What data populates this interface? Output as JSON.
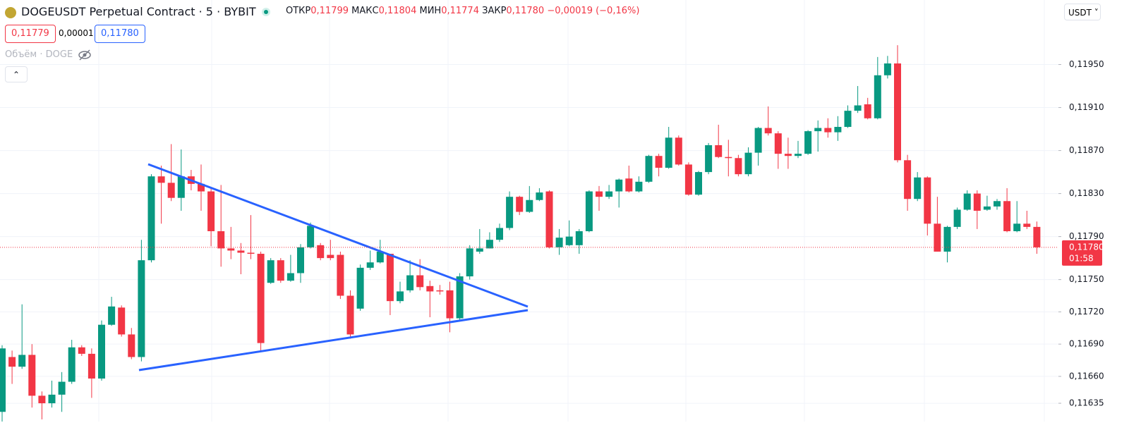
{
  "header": {
    "symbol_title": "DOGEUSDT Perpetual Contract · 5 · BYBIT",
    "ohlc": [
      {
        "label": "ОТКР",
        "value": "0,11799"
      },
      {
        "label": "МАКС",
        "value": "0,11804"
      },
      {
        "label": "МИН",
        "value": "0,11774"
      },
      {
        "label": "ЗАКР",
        "value": "0,11780"
      }
    ],
    "change": "−0,00019 (−0,16%)",
    "bid": "0,11779",
    "spread": "0,00001",
    "ask": "0,11780",
    "volume_label": "Объём · DOGE",
    "currency": "USDT"
  },
  "chart_data": {
    "type": "candlestick",
    "up_color": "#089981",
    "down_color": "#f23645",
    "open": [
      0.11627,
      0.11678,
      0.11669,
      0.1168,
      0.11642,
      0.11635,
      0.11643,
      0.11655,
      0.11687,
      0.11681,
      0.11658,
      0.11708,
      0.11724,
      0.11699,
      0.11678,
      0.11768,
      0.11846,
      0.1184,
      0.11826,
      0.11846,
      0.11839,
      0.11832,
      0.11795,
      0.11779,
      0.11777,
      0.11775,
      0.11774,
      0.11747,
      0.11768,
      0.11749,
      0.11756,
      0.1178,
      0.11782,
      0.11773,
      0.11773,
      0.11735,
      0.11723,
      0.11761,
      0.11766,
      0.11774,
      0.1173,
      0.1174,
      0.11754,
      0.11744,
      0.1174,
      0.1174,
      0.11714,
      0.11753,
      0.11776,
      0.11779,
      0.11787,
      0.11798,
      0.11827,
      0.11813,
      0.11824,
      0.11832,
      0.1178,
      0.11782,
      0.11782,
      0.11795,
      0.11832,
      0.11827,
      0.11832,
      0.11844,
      0.11832,
      0.11841,
      0.11865,
      0.11854,
      0.11882,
      0.11857,
      0.11829,
      0.1185,
      0.11875,
      0.11864,
      0.11863,
      0.11848,
      0.11868,
      0.11891,
      0.11886,
      0.11867,
      0.11865,
      0.11867,
      0.11888,
      0.11891,
      0.11887,
      0.11892,
      0.11907,
      0.11913,
      0.119,
      0.1194,
      0.11951,
      0.11861,
      0.11825,
      0.11845,
      0.11802,
      0.11776,
      0.11799,
      0.11815,
      0.1183,
      0.11815,
      0.11818,
      0.11823,
      0.11795,
      0.11802,
      0.11799
    ],
    "high": [
      0.11689,
      0.11684,
      0.11727,
      0.1169,
      0.11646,
      0.11656,
      0.11664,
      0.11694,
      0.11689,
      0.11686,
      0.11712,
      0.11734,
      0.11726,
      0.11705,
      0.11787,
      0.11848,
      0.11856,
      0.11876,
      0.11871,
      0.11852,
      0.11857,
      0.11835,
      0.11838,
      0.11799,
      0.11784,
      0.1181,
      0.11776,
      0.1177,
      0.1177,
      0.11773,
      0.11783,
      0.11803,
      0.11784,
      0.11787,
      0.11776,
      0.1174,
      0.11764,
      0.11777,
      0.11787,
      0.11774,
      0.11748,
      0.11768,
      0.11769,
      0.11749,
      0.11745,
      0.11748,
      0.11756,
      0.11782,
      0.11797,
      0.11794,
      0.11802,
      0.11832,
      0.11828,
      0.11837,
      0.11835,
      0.11833,
      0.11797,
      0.11805,
      0.11797,
      0.11833,
      0.11837,
      0.11838,
      0.11844,
      0.11856,
      0.11846,
      0.11866,
      0.11867,
      0.11892,
      0.11884,
      0.11859,
      0.11851,
      0.11877,
      0.11894,
      0.1188,
      0.11866,
      0.11873,
      0.11892,
      0.11911,
      0.11888,
      0.11882,
      0.11879,
      0.11889,
      0.11898,
      0.119,
      0.11902,
      0.11912,
      0.1193,
      0.11919,
      0.11957,
      0.11958,
      0.11968,
      0.11866,
      0.1185,
      0.11846,
      0.11827,
      0.118,
      0.11817,
      0.11833,
      0.11833,
      0.11828,
      0.11825,
      0.11835,
      0.11823,
      0.11814,
      0.11804
    ],
    "low": [
      0.11618,
      0.11653,
      0.11667,
      0.11631,
      0.1162,
      0.11631,
      0.11627,
      0.11653,
      0.11679,
      0.1164,
      0.11656,
      0.11707,
      0.11697,
      0.11676,
      0.11674,
      0.11766,
      0.11802,
      0.11823,
      0.11814,
      0.11833,
      0.11814,
      0.11781,
      0.11762,
      0.11769,
      0.11755,
      0.11769,
      0.11684,
      0.11746,
      0.11747,
      0.11748,
      0.11747,
      0.11779,
      0.11768,
      0.11768,
      0.11732,
      0.11695,
      0.11721,
      0.11759,
      0.11765,
      0.11717,
      0.11728,
      0.11738,
      0.1174,
      0.11715,
      0.11736,
      0.11701,
      0.11712,
      0.1175,
      0.11774,
      0.11779,
      0.11785,
      0.11796,
      0.1181,
      0.11812,
      0.11823,
      0.11779,
      0.11773,
      0.11781,
      0.11774,
      0.11794,
      0.11814,
      0.11825,
      0.11817,
      0.11831,
      0.11831,
      0.1184,
      0.11846,
      0.11853,
      0.11856,
      0.11828,
      0.11828,
      0.11848,
      0.11863,
      0.11846,
      0.11846,
      0.11846,
      0.11856,
      0.11884,
      0.11853,
      0.11853,
      0.11863,
      0.11866,
      0.11869,
      0.11882,
      0.11879,
      0.11891,
      0.11905,
      0.11899,
      0.11899,
      0.11937,
      0.11859,
      0.11814,
      0.11823,
      0.11791,
      0.11776,
      0.11766,
      0.11797,
      0.11814,
      0.11797,
      0.11814,
      0.11815,
      0.11794,
      0.11794,
      0.11797,
      0.11774
    ],
    "close": [
      0.11686,
      0.11669,
      0.1168,
      0.11642,
      0.11635,
      0.11643,
      0.11655,
      0.11687,
      0.11681,
      0.11658,
      0.11708,
      0.11725,
      0.11699,
      0.11678,
      0.11768,
      0.11846,
      0.1184,
      0.11826,
      0.11846,
      0.11839,
      0.11832,
      0.11795,
      0.11779,
      0.11777,
      0.11775,
      0.11774,
      0.11691,
      0.11768,
      0.11749,
      0.11756,
      0.1178,
      0.118,
      0.1177,
      0.1177,
      0.11735,
      0.11699,
      0.11761,
      0.11766,
      0.11776,
      0.1173,
      0.11739,
      0.11754,
      0.11743,
      0.11739,
      0.11739,
      0.11714,
      0.11753,
      0.11779,
      0.11779,
      0.11787,
      0.11798,
      0.11827,
      0.11813,
      0.11824,
      0.11831,
      0.1178,
      0.11789,
      0.1179,
      0.11795,
      0.11832,
      0.11827,
      0.11832,
      0.11843,
      0.11832,
      0.11841,
      0.11865,
      0.11854,
      0.11882,
      0.11857,
      0.11829,
      0.1185,
      0.11875,
      0.11864,
      0.11863,
      0.11848,
      0.11868,
      0.11891,
      0.11886,
      0.11867,
      0.11865,
      0.11867,
      0.11888,
      0.11891,
      0.11887,
      0.11892,
      0.11907,
      0.11912,
      0.119,
      0.1194,
      0.11951,
      0.11861,
      0.11825,
      0.11845,
      0.11802,
      0.11776,
      0.11799,
      0.11815,
      0.1183,
      0.11814,
      0.11818,
      0.11823,
      0.11795,
      0.11802,
      0.11799,
      0.1178
    ],
    "ylim": [
      0.11618,
      0.1201
    ],
    "yticks": [
      {
        "value": 0.11635,
        "label": "0,11635"
      },
      {
        "value": 0.1166,
        "label": "0,11660"
      },
      {
        "value": 0.1169,
        "label": "0,11690"
      },
      {
        "value": 0.1172,
        "label": "0,11720"
      },
      {
        "value": 0.1175,
        "label": "0,11750"
      },
      {
        "value": 0.1179,
        "label": "0,11790"
      },
      {
        "value": 0.1183,
        "label": "0,11830"
      },
      {
        "value": 0.1187,
        "label": "0,11870"
      },
      {
        "value": 0.1191,
        "label": "0,11910"
      },
      {
        "value": 0.1195,
        "label": "0,11950"
      }
    ],
    "grid": true,
    "last_price": {
      "value": 0.1178,
      "label": "0,11780"
    },
    "countdown": "01:58"
  }
}
